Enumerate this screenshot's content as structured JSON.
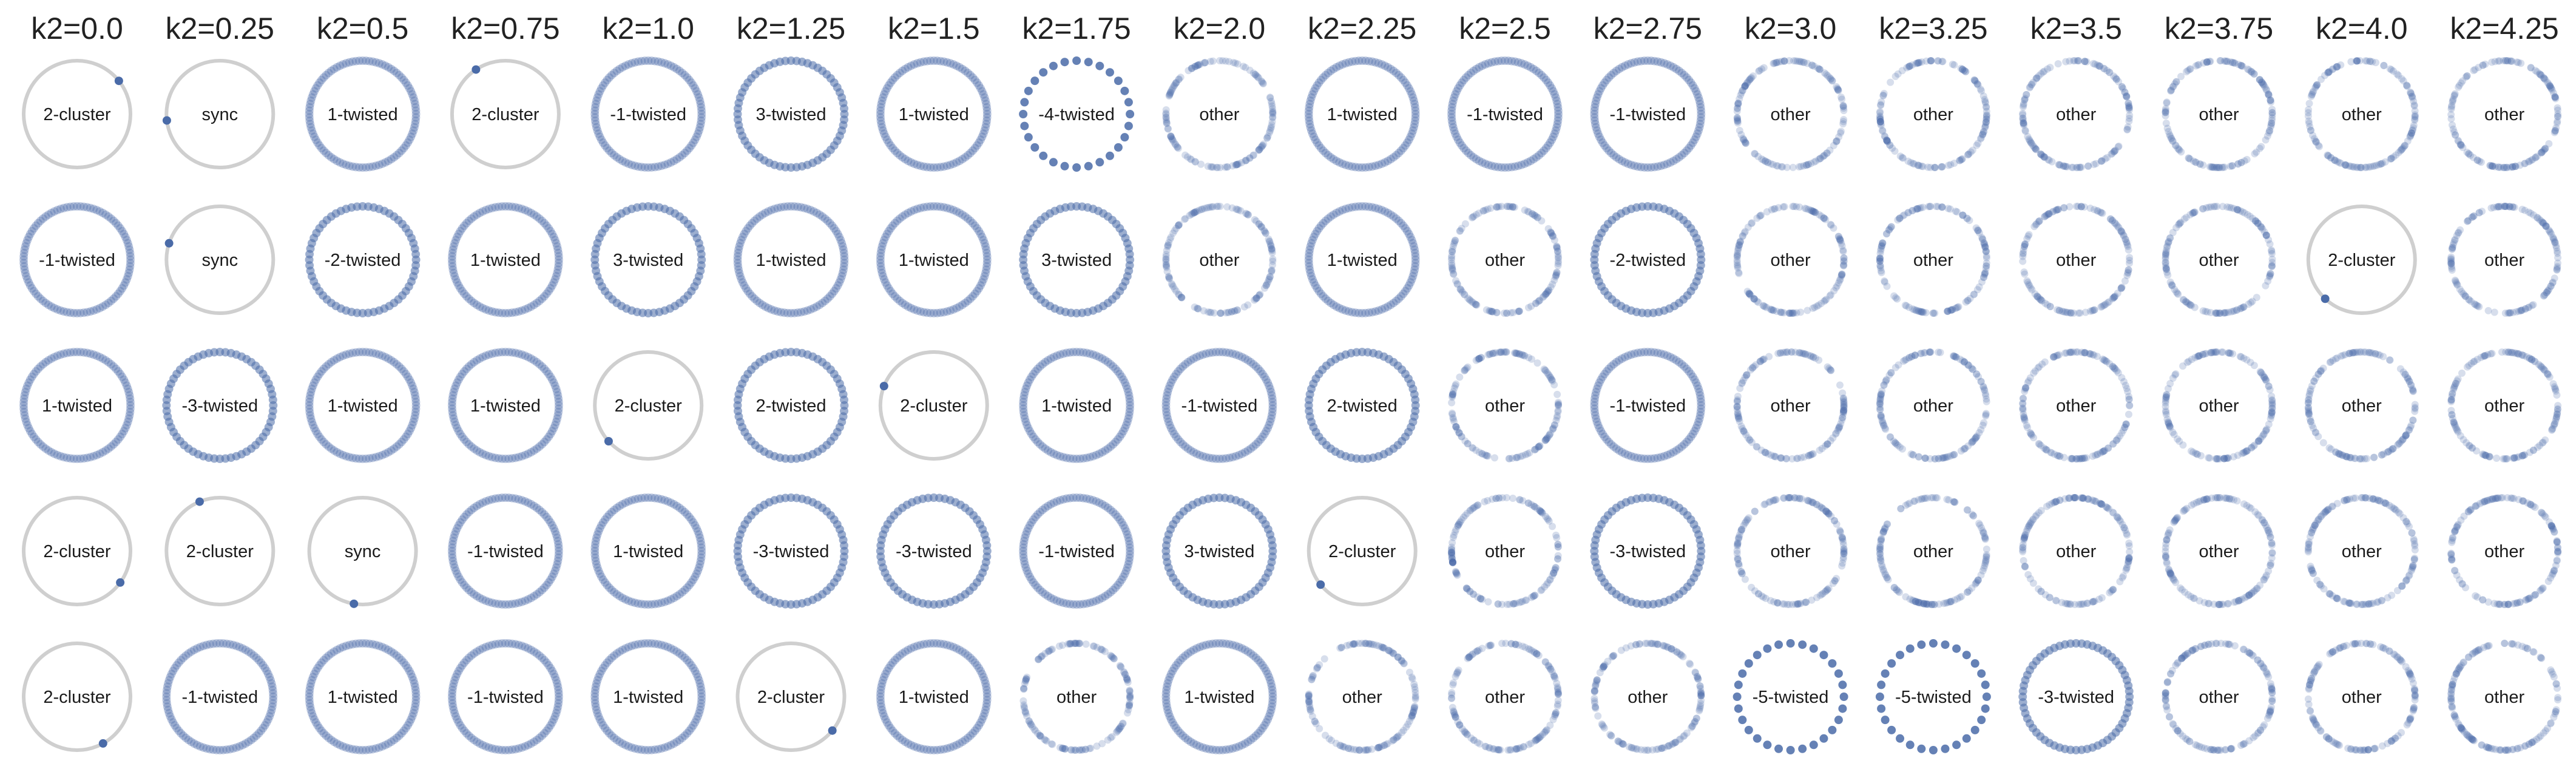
{
  "chart_data": {
    "type": "grid",
    "column_titles": [
      "k2=0.0",
      "k2=0.25",
      "k2=0.5",
      "k2=0.75",
      "k2=1.0",
      "k2=1.25",
      "k2=1.5",
      "k2=1.75",
      "k2=2.0",
      "k2=2.25",
      "k2=2.5",
      "k2=2.75",
      "k2=3.0",
      "k2=3.25",
      "k2=3.5",
      "k2=3.75",
      "k2=4.0",
      "k2=4.25"
    ],
    "rows": [
      [
        "2-cluster",
        "sync",
        "1-twisted",
        "2-cluster",
        "-1-twisted",
        "3-twisted",
        "1-twisted",
        "-4-twisted",
        "other",
        "1-twisted",
        "-1-twisted",
        "-1-twisted",
        "other",
        "other",
        "other",
        "other",
        "other",
        "other"
      ],
      [
        "-1-twisted",
        "sync",
        "-2-twisted",
        "1-twisted",
        "3-twisted",
        "1-twisted",
        "1-twisted",
        "3-twisted",
        "other",
        "1-twisted",
        "other",
        "-2-twisted",
        "other",
        "other",
        "other",
        "other",
        "2-cluster",
        "other"
      ],
      [
        "1-twisted",
        "-3-twisted",
        "1-twisted",
        "1-twisted",
        "2-cluster",
        "2-twisted",
        "2-cluster",
        "1-twisted",
        "-1-twisted",
        "2-twisted",
        "other",
        "-1-twisted",
        "other",
        "other",
        "other",
        "other",
        "other",
        "other"
      ],
      [
        "2-cluster",
        "2-cluster",
        "sync",
        "-1-twisted",
        "1-twisted",
        "-3-twisted",
        "-3-twisted",
        "-1-twisted",
        "3-twisted",
        "2-cluster",
        "other",
        "-3-twisted",
        "other",
        "other",
        "other",
        "other",
        "other",
        "other"
      ],
      [
        "2-cluster",
        "-1-twisted",
        "1-twisted",
        "-1-twisted",
        "1-twisted",
        "2-cluster",
        "1-twisted",
        "other",
        "1-twisted",
        "other",
        "other",
        "other",
        "-5-twisted",
        "-5-twisted",
        "-3-twisted",
        "other",
        "other",
        "other"
      ]
    ],
    "colors": {
      "oscillator": "#4a6ba8",
      "ring": "#cfcfcf",
      "text": "#1a1a1a"
    }
  }
}
